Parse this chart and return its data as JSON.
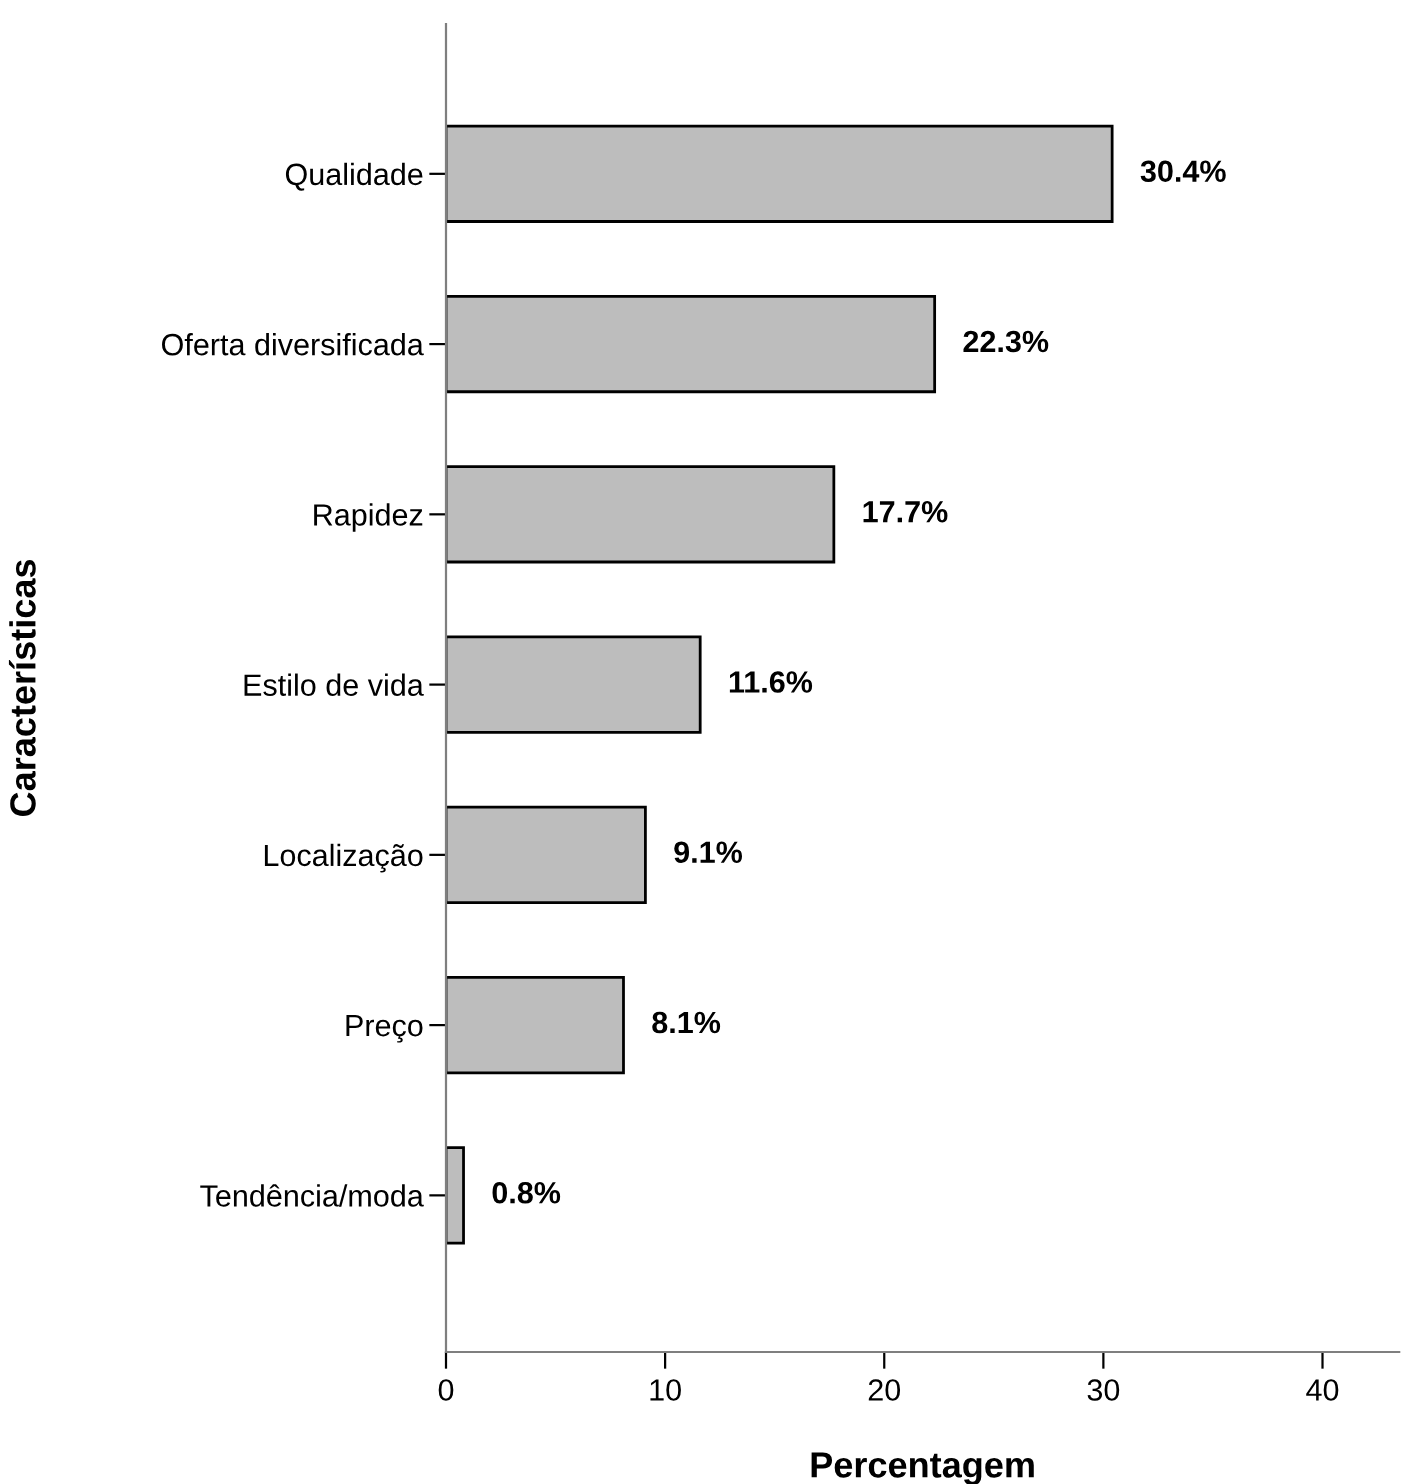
{
  "chart_data": {
    "type": "bar",
    "orientation": "horizontal",
    "xlabel": "Percentagem",
    "ylabel": "Características",
    "categories": [
      "Qualidade",
      "Oferta diversificada",
      "Rapidez",
      "Estilo de vida",
      "Localização",
      "Preço",
      "Tendência/moda"
    ],
    "values": [
      30.4,
      22.3,
      17.7,
      11.6,
      9.1,
      8.1,
      0.8
    ],
    "value_labels": [
      "30.4%",
      "22.3%",
      "17.7%",
      "11.6%",
      "9.1%",
      "8.1%",
      "0.8%"
    ],
    "color": "#bdbdbd",
    "xlim": [
      0,
      43.5
    ],
    "xticks": [
      0,
      10,
      20,
      30,
      40
    ],
    "grid": false,
    "legend": false
  }
}
